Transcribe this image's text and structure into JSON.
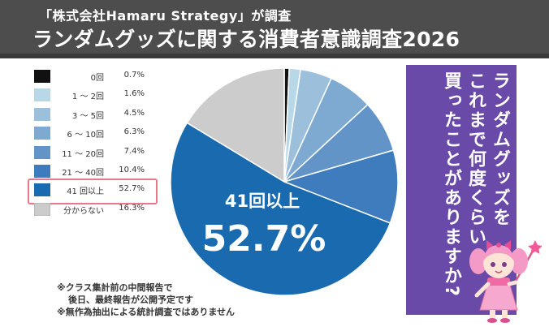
{
  "header": {
    "subtitle": "「株式会社Hamaru Strategy」が調査",
    "title": "ランダムグッズに関する消費者意識調査2026"
  },
  "chart_data": {
    "type": "pie",
    "title": "ランダムグッズに関する消費者意識調査2026",
    "slices": [
      {
        "label": "0回",
        "value": 0.7,
        "display": "0.7%",
        "color": "#111111"
      },
      {
        "label": "1 ～ 2回",
        "value": 1.6,
        "display": "1.6%",
        "color": "#b8d8e8"
      },
      {
        "label": "3 ～ 5回",
        "value": 4.5,
        "display": "4.5%",
        "color": "#9cc0dc"
      },
      {
        "label": "6 ～ 10回",
        "value": 6.3,
        "display": "6.3%",
        "color": "#7eaad2"
      },
      {
        "label": "11 ～ 20回",
        "value": 7.4,
        "display": "7.4%",
        "color": "#6394c8"
      },
      {
        "label": "21 ～ 40回",
        "value": 10.4,
        "display": "10.4%",
        "color": "#3f7cbe"
      },
      {
        "label": "41 回以上",
        "value": 52.7,
        "display": "52.7%",
        "color": "#1a6ab0",
        "highlight": true
      },
      {
        "label": "分からない",
        "value": 16.3,
        "display": "16.3%",
        "color": "#cccccc"
      }
    ],
    "callout": {
      "label": "41回以上",
      "value": "52.7%"
    }
  },
  "notes": [
    "※クラス集計前の中間報告で",
    "後日、最終報告が公開予定です",
    "※無作為抽出による統計調査ではありません"
  ],
  "question": "ランダムグッズを\nこれまで何度くらい\n買ったことがありますか?",
  "colors": {
    "header_bg": "#4d4d4d",
    "question_bg": "#6a4aa8",
    "highlight_border": "#e8788c"
  }
}
